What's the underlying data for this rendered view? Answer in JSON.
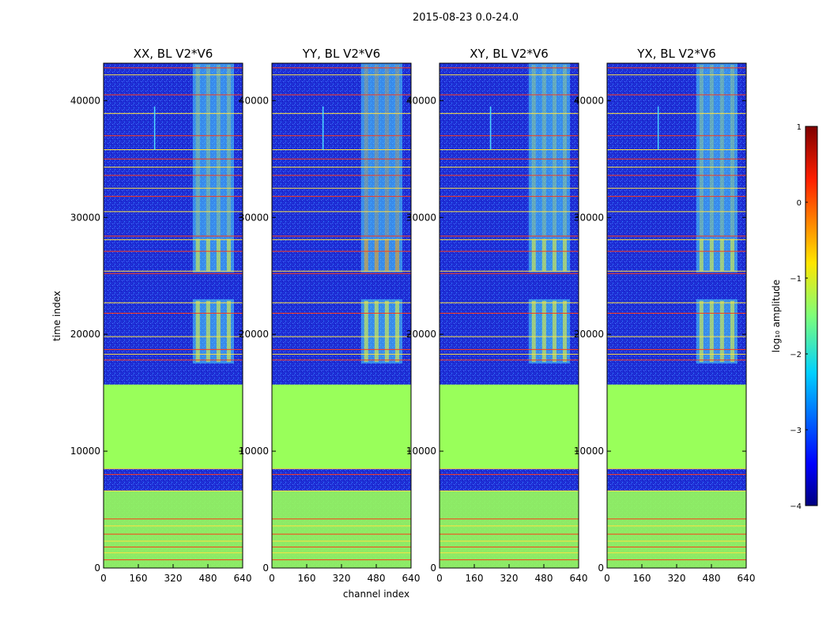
{
  "figure_title": "2015-08-23 0.0-24.0",
  "chart_data": {
    "type": "heatmap",
    "xlabel": "channel index",
    "ylabel": "time index",
    "xlim": [
      0,
      640
    ],
    "ylim": [
      0,
      43200
    ],
    "x_ticks": [
      0,
      160,
      320,
      480,
      640
    ],
    "x_tick_labels": [
      "0",
      "160",
      "320",
      "480",
      "640"
    ],
    "y_ticks": [
      0,
      10000,
      20000,
      30000,
      40000
    ],
    "y_tick_labels": [
      "0",
      "10000",
      "20000",
      "30000",
      "40000"
    ],
    "panels": [
      {
        "title": "XX, BL V2*V6",
        "ry_intense": false
      },
      {
        "title": "YY, BL V2*V6",
        "ry_intense": true
      },
      {
        "title": "XY, BL V2*V6",
        "ry_intense": false
      },
      {
        "title": "YX, BL V2*V6",
        "ry_intense": false
      }
    ],
    "flagged_time_range": [
      8500,
      15700
    ],
    "rfi_channel_band": [
      410,
      600
    ],
    "rfi_time_windows": [
      [
        0,
        6600
      ],
      [
        17500,
        23000
      ],
      [
        25300,
        28300
      ],
      [
        28300,
        43200
      ]
    ],
    "horizontal_lines": [
      42800,
      42200,
      40500,
      38900,
      37000,
      35800,
      35000,
      34300,
      33600,
      32500,
      31800,
      30500,
      28400,
      28100,
      27100,
      25400,
      25200,
      22700,
      21800,
      19800,
      18700,
      18300,
      17800,
      8500,
      8000,
      6600,
      4200,
      3600,
      2900,
      2300,
      1800,
      1300,
      700
    ],
    "colorbar": {
      "label": "log₁₀ amplitude",
      "range": [
        -4,
        1
      ],
      "ticks": [
        1,
        0,
        -1,
        -2,
        -3,
        -4
      ],
      "tick_labels": [
        "1",
        "0",
        "−1",
        "−2",
        "−3",
        "−4"
      ],
      "colormap": "jet"
    }
  },
  "colors": {
    "background": "#1f2fd6",
    "flagged": "#99ff5a",
    "rfi_low": "#4fd8ff",
    "rfi_high": "#f0ff30",
    "rfi_intense": "#ffaa10",
    "line_red": "#ff3a1a",
    "line_yellow": "#ffe040"
  }
}
